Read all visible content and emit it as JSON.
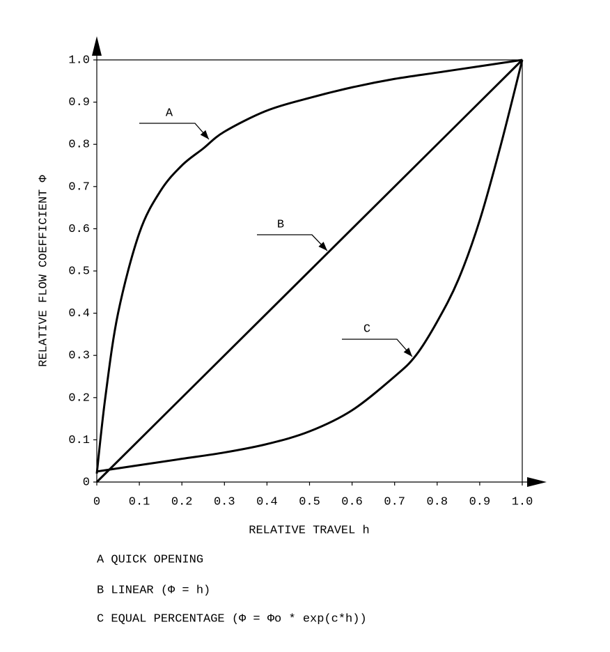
{
  "chart_data": {
    "type": "line",
    "xlabel": "RELATIVE TRAVEL h",
    "ylabel": "RELATIVE FLOW COEFFICIENT Φ",
    "xlim": [
      0,
      1
    ],
    "ylim": [
      0,
      1
    ],
    "xticks": [
      0,
      0.1,
      0.2,
      0.3,
      0.4,
      0.5,
      0.6,
      0.7,
      0.8,
      0.9,
      {
        "value": 1,
        "label": "1.0"
      }
    ],
    "yticks": [
      0,
      0.1,
      0.2,
      0.3,
      0.4,
      0.5,
      0.6,
      0.7,
      0.8,
      0.9,
      {
        "value": 1,
        "label": "1.0"
      }
    ],
    "grid": false,
    "annotations": [
      "A",
      "B",
      "C"
    ],
    "series": [
      {
        "name": "A QUICK OPENING",
        "color": "#000000",
        "x": [
          0,
          0.02,
          0.05,
          0.1,
          0.15,
          0.2,
          0.25,
          0.3,
          0.4,
          0.5,
          0.6,
          0.7,
          0.8,
          0.9,
          1
        ],
        "values": [
          0.02,
          0.2,
          0.4,
          0.59,
          0.69,
          0.75,
          0.79,
          0.83,
          0.88,
          0.91,
          0.935,
          0.955,
          0.97,
          0.985,
          1
        ]
      },
      {
        "name": "B LINEAR (Φ = h)",
        "color": "#000000",
        "x": [
          0,
          1
        ],
        "values": [
          0,
          1
        ]
      },
      {
        "name": "C EQUAL PERCENTAGE (Φ = Φo * exp(c*h))",
        "color": "#000000",
        "x": [
          0,
          0.1,
          0.2,
          0.3,
          0.4,
          0.5,
          0.6,
          0.7,
          0.75,
          0.8,
          0.85,
          0.9,
          0.95,
          1
        ],
        "values": [
          0.025,
          0.04,
          0.055,
          0.07,
          0.09,
          0.12,
          0.17,
          0.25,
          0.3,
          0.38,
          0.48,
          0.62,
          0.8,
          1
        ]
      }
    ]
  }
}
